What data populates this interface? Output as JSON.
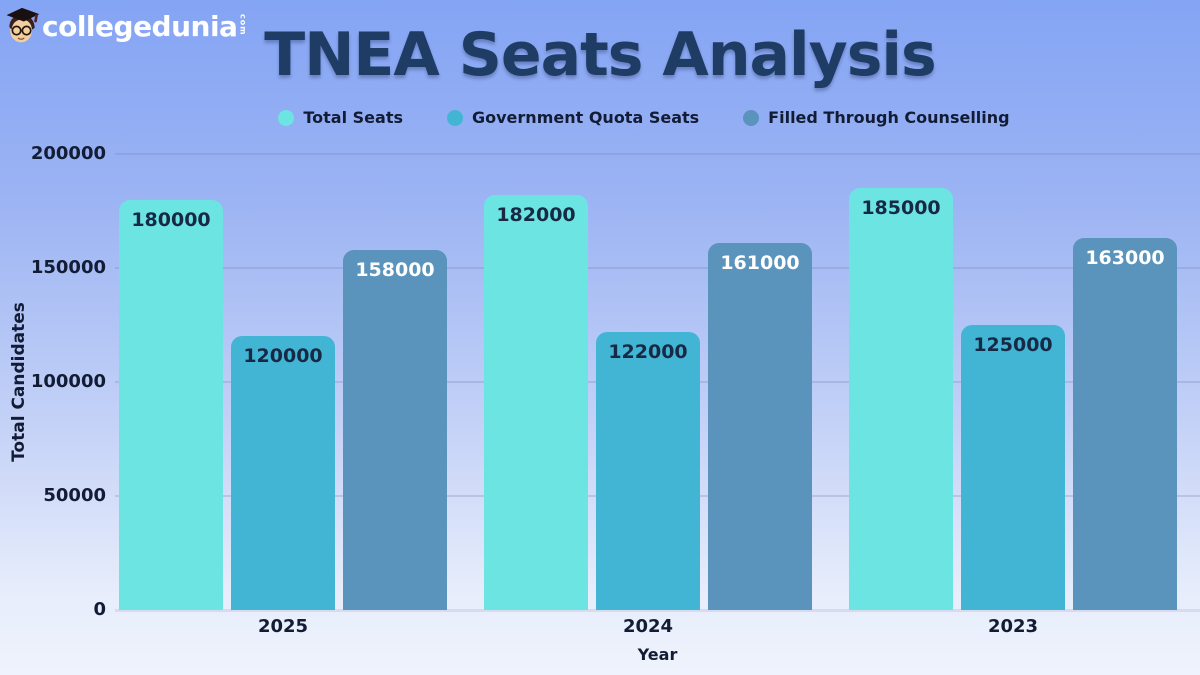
{
  "logo": {
    "brand": "collegedunia",
    "tld": "com",
    "mascot_icon": "collegedunia-mascot"
  },
  "title": "TNEA Seats Analysis",
  "colors": {
    "total_seats": "#6ce4e2",
    "government_quota_seats": "#42b5d4",
    "filled_through_counselling": "#5a93bb",
    "title_text": "#1e3c64",
    "axis_text": "#131c35",
    "background_top": "#84a4f4",
    "background_bottom": "#eff3fd"
  },
  "chart_data": {
    "type": "bar",
    "title": "TNEA Seats Analysis",
    "categories": [
      "2025",
      "2024",
      "2023"
    ],
    "series": [
      {
        "name": "Total Seats",
        "color": "#6ce4e2",
        "label_color": "#172945",
        "values": [
          180000,
          182000,
          185000
        ]
      },
      {
        "name": "Government Quota Seats",
        "color": "#42b5d4",
        "label_color": "#172945",
        "values": [
          120000,
          122000,
          125000
        ]
      },
      {
        "name": "Filled Through Counselling",
        "color": "#5a93bb",
        "label_color": "#ffffff",
        "values": [
          158000,
          161000,
          163000
        ]
      }
    ],
    "xlabel": "Year",
    "ylabel": "Total Candidates",
    "ylim": [
      0,
      200000
    ],
    "yticks": [
      0,
      50000,
      100000,
      150000,
      200000
    ],
    "grid": true,
    "legend_position": "top"
  }
}
